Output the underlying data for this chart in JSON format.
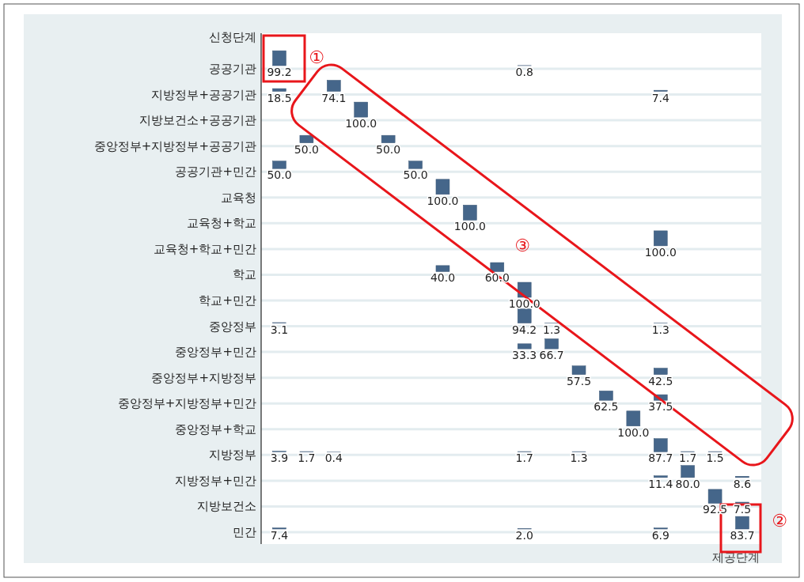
{
  "chart_data": {
    "type": "heatmap",
    "ylabel": "신청단계",
    "xlabel": "제공단계",
    "data_labels": true,
    "grid": "y",
    "categories": [
      null,
      null,
      null,
      null,
      null,
      null,
      null,
      null,
      null,
      null,
      null,
      null,
      null,
      null,
      null,
      null,
      null,
      null
    ],
    "y_categories": [
      "공공기관",
      "지방정부+공공기관",
      "지방보건소+공공기관",
      "중앙정부+지방정부+공공기관",
      "공공기관+민간",
      "교육청",
      "교육청+학교",
      "교육청+학교+민간",
      "학교",
      "학교+민간",
      "중앙정부",
      "중앙정부+민간",
      "중앙정부+지방정부",
      "중앙정부+지방정부+민간",
      "중앙정부+학교",
      "지방정부",
      "지방정부+민간",
      "지방보건소",
      "민간"
    ],
    "cells": [
      [
        99.2,
        null,
        null,
        null,
        null,
        null,
        null,
        null,
        null,
        0.8,
        null,
        null,
        null,
        null,
        null,
        null,
        null,
        null
      ],
      [
        18.5,
        null,
        74.1,
        null,
        null,
        null,
        null,
        null,
        null,
        null,
        null,
        null,
        null,
        null,
        7.4,
        null,
        null,
        null
      ],
      [
        null,
        null,
        null,
        100.0,
        null,
        null,
        null,
        null,
        null,
        null,
        null,
        null,
        null,
        null,
        null,
        null,
        null,
        null
      ],
      [
        null,
        50.0,
        null,
        null,
        50.0,
        null,
        null,
        null,
        null,
        null,
        null,
        null,
        null,
        null,
        null,
        null,
        null,
        null
      ],
      [
        50.0,
        null,
        null,
        null,
        null,
        50.0,
        null,
        null,
        null,
        null,
        null,
        null,
        null,
        null,
        null,
        null,
        null,
        null
      ],
      [
        null,
        null,
        null,
        null,
        null,
        null,
        100.0,
        null,
        null,
        null,
        null,
        null,
        null,
        null,
        null,
        null,
        null,
        null
      ],
      [
        null,
        null,
        null,
        null,
        null,
        null,
        null,
        100.0,
        null,
        null,
        null,
        null,
        null,
        null,
        null,
        null,
        null,
        null
      ],
      [
        null,
        null,
        null,
        null,
        null,
        null,
        null,
        null,
        null,
        null,
        null,
        null,
        null,
        null,
        100.0,
        null,
        null,
        null
      ],
      [
        null,
        null,
        null,
        null,
        null,
        null,
        40.0,
        null,
        60.0,
        null,
        null,
        null,
        null,
        null,
        null,
        null,
        null,
        null
      ],
      [
        null,
        null,
        null,
        null,
        null,
        null,
        null,
        null,
        null,
        100.0,
        null,
        null,
        null,
        null,
        null,
        null,
        null,
        null
      ],
      [
        3.1,
        null,
        null,
        null,
        null,
        null,
        null,
        null,
        null,
        94.2,
        1.3,
        null,
        null,
        null,
        1.3,
        null,
        null,
        null
      ],
      [
        null,
        null,
        null,
        null,
        null,
        null,
        null,
        null,
        null,
        33.3,
        66.7,
        null,
        null,
        null,
        null,
        null,
        null,
        null
      ],
      [
        null,
        null,
        null,
        null,
        null,
        null,
        null,
        null,
        null,
        null,
        null,
        57.5,
        null,
        null,
        42.5,
        null,
        null,
        null
      ],
      [
        null,
        null,
        null,
        null,
        null,
        null,
        null,
        null,
        null,
        null,
        null,
        null,
        62.5,
        null,
        37.5,
        null,
        null,
        null
      ],
      [
        null,
        null,
        null,
        null,
        null,
        null,
        null,
        null,
        null,
        null,
        null,
        null,
        null,
        100.0,
        null,
        null,
        null,
        null
      ],
      [
        3.9,
        1.7,
        0.4,
        null,
        null,
        null,
        null,
        null,
        null,
        1.7,
        null,
        1.3,
        null,
        null,
        87.7,
        1.7,
        1.5,
        null
      ],
      [
        null,
        null,
        null,
        null,
        null,
        null,
        null,
        null,
        null,
        null,
        null,
        null,
        null,
        null,
        11.4,
        80.0,
        null,
        8.6
      ],
      [
        null,
        null,
        null,
        null,
        null,
        null,
        null,
        null,
        null,
        null,
        null,
        null,
        null,
        null,
        null,
        null,
        92.5,
        7.5
      ],
      [
        7.4,
        null,
        null,
        null,
        null,
        null,
        null,
        null,
        null,
        2.0,
        null,
        null,
        null,
        null,
        6.9,
        null,
        null,
        83.7
      ]
    ],
    "cell_labels": [
      [
        "99.2",
        null,
        null,
        null,
        null,
        null,
        null,
        null,
        null,
        "0.8",
        null,
        null,
        null,
        null,
        null,
        null,
        null,
        null
      ],
      [
        "18.5",
        null,
        "74.1",
        null,
        null,
        null,
        null,
        null,
        null,
        null,
        null,
        null,
        null,
        null,
        "7.4",
        null,
        null,
        null
      ],
      [
        null,
        null,
        null,
        "100.0",
        null,
        null,
        null,
        null,
        null,
        null,
        null,
        null,
        null,
        null,
        null,
        null,
        null,
        null
      ],
      [
        null,
        "50.0",
        null,
        null,
        "50.0",
        null,
        null,
        null,
        null,
        null,
        null,
        null,
        null,
        null,
        null,
        null,
        null,
        null
      ],
      [
        "50.0",
        null,
        null,
        null,
        null,
        "50.0",
        null,
        null,
        null,
        null,
        null,
        null,
        null,
        null,
        null,
        null,
        null,
        null
      ],
      [
        null,
        null,
        null,
        null,
        null,
        null,
        "100.0",
        null,
        null,
        null,
        null,
        null,
        null,
        null,
        null,
        null,
        null,
        null
      ],
      [
        null,
        null,
        null,
        null,
        null,
        null,
        null,
        "100.0",
        null,
        null,
        null,
        null,
        null,
        null,
        null,
        null,
        null,
        null
      ],
      [
        null,
        null,
        null,
        null,
        null,
        null,
        null,
        null,
        null,
        null,
        null,
        null,
        null,
        null,
        "100.0",
        null,
        null,
        null
      ],
      [
        null,
        null,
        null,
        null,
        null,
        null,
        "40.0",
        null,
        "60.0",
        null,
        null,
        null,
        null,
        null,
        null,
        null,
        null,
        null
      ],
      [
        null,
        null,
        null,
        null,
        null,
        null,
        null,
        null,
        null,
        "100.0",
        null,
        null,
        null,
        null,
        null,
        null,
        null,
        null
      ],
      [
        "3.1",
        null,
        null,
        null,
        null,
        null,
        null,
        null,
        null,
        "94.2",
        "1.3",
        null,
        null,
        null,
        "1.3",
        null,
        null,
        null
      ],
      [
        null,
        null,
        null,
        null,
        null,
        null,
        null,
        null,
        null,
        "33.3",
        "66.7",
        null,
        null,
        null,
        null,
        null,
        null,
        null
      ],
      [
        null,
        null,
        null,
        null,
        null,
        null,
        null,
        null,
        null,
        null,
        null,
        "57.5",
        null,
        null,
        "42.5",
        null,
        null,
        null
      ],
      [
        null,
        null,
        null,
        null,
        null,
        null,
        null,
        null,
        null,
        null,
        null,
        null,
        "62.5",
        null,
        "37.5",
        null,
        null,
        null
      ],
      [
        null,
        null,
        null,
        null,
        null,
        null,
        null,
        null,
        null,
        null,
        null,
        null,
        null,
        "100.0",
        null,
        null,
        null,
        null
      ],
      [
        "3.9",
        "1.7",
        "0.4",
        null,
        null,
        null,
        null,
        null,
        null,
        "1.7",
        null,
        "1.3",
        null,
        null,
        "87.7",
        "1.7",
        "1.5",
        null
      ],
      [
        null,
        null,
        null,
        null,
        null,
        null,
        null,
        null,
        null,
        null,
        null,
        null,
        null,
        null,
        "11.4",
        "80.0",
        null,
        "8.6"
      ],
      [
        null,
        null,
        null,
        null,
        null,
        null,
        null,
        null,
        null,
        null,
        null,
        null,
        null,
        null,
        null,
        null,
        "92.5",
        "7.5"
      ],
      [
        "7.4",
        null,
        null,
        null,
        null,
        null,
        null,
        null,
        null,
        "2.0",
        null,
        null,
        null,
        null,
        "6.9",
        null,
        null,
        "83.7"
      ]
    ],
    "annotations": [
      "①",
      "②",
      "③"
    ]
  }
}
